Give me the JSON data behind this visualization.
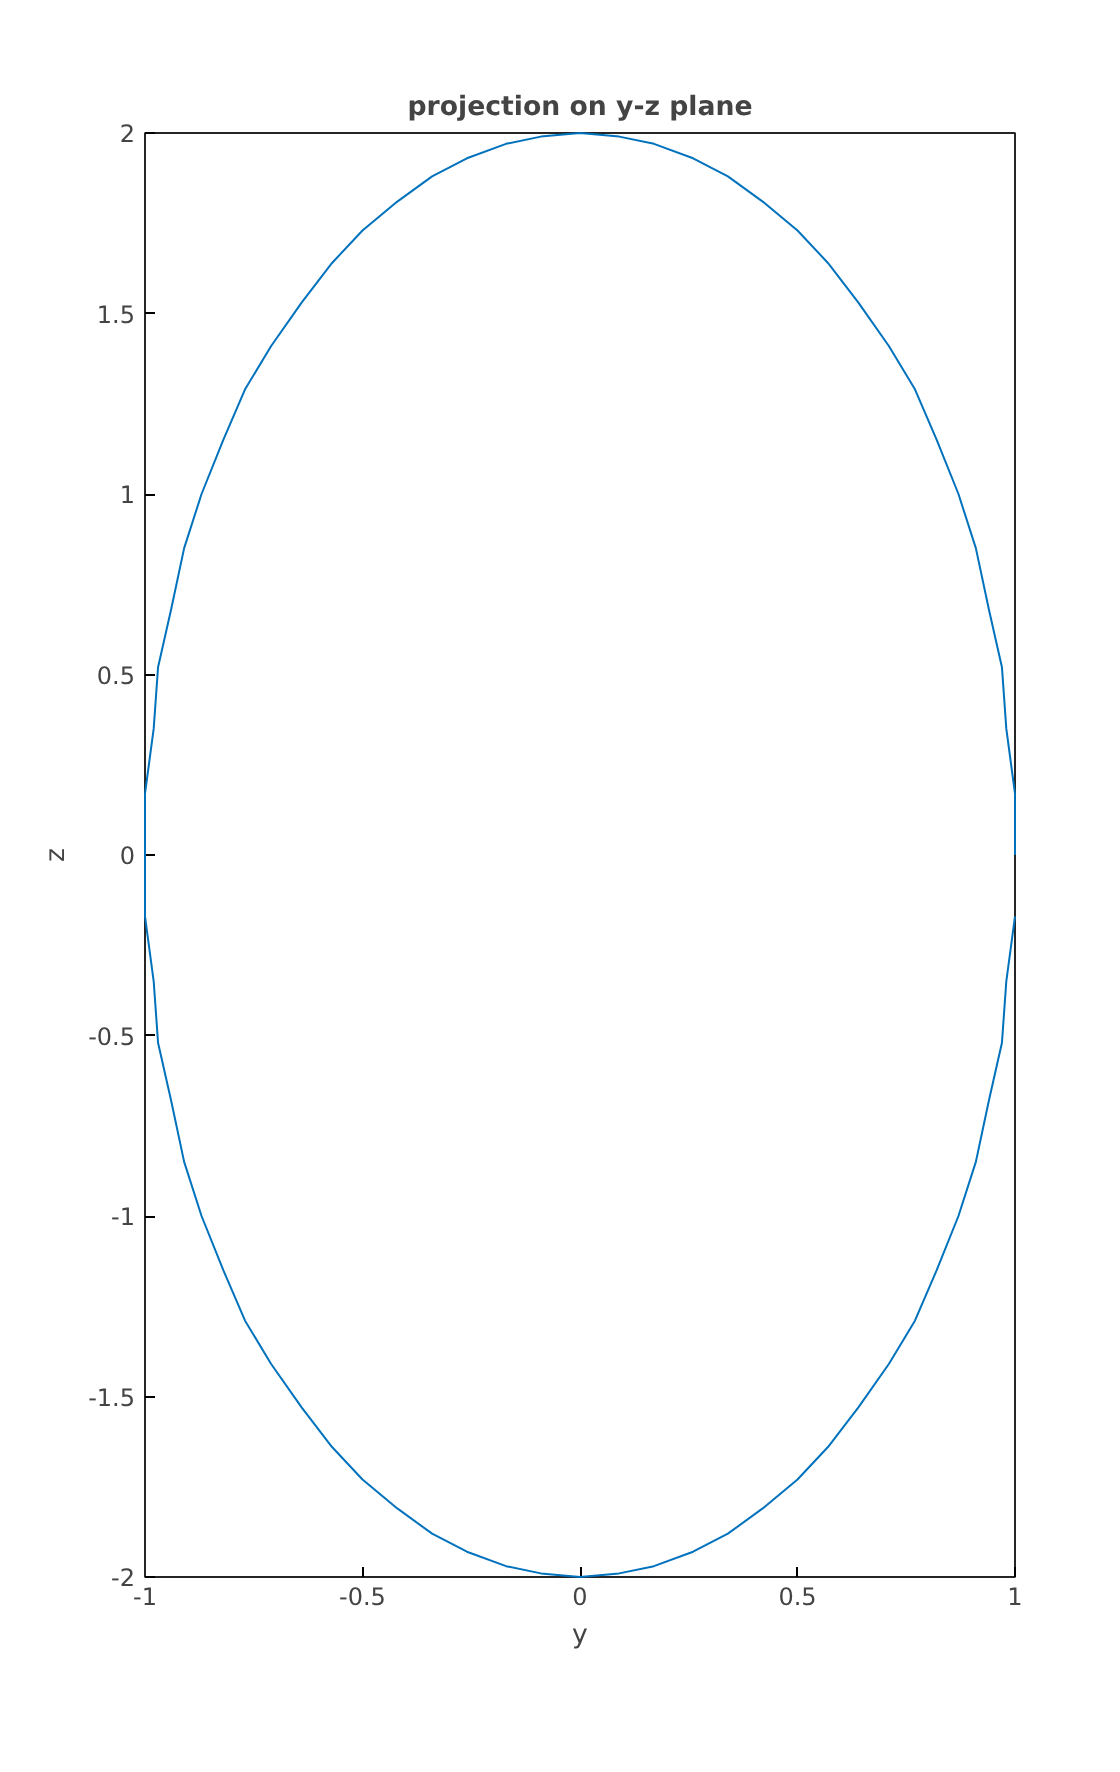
{
  "chart_data": {
    "type": "line",
    "title": "projection on y-z plane",
    "xlabel": "y",
    "ylabel": "z",
    "series": [
      {
        "color": "#0072bd",
        "x": [
          1,
          1,
          0.98,
          0.97,
          0.94,
          0.91,
          0.87,
          0.82,
          0.77,
          0.71,
          0.64,
          0.57,
          0.5,
          0.42,
          0.34,
          0.26,
          0.17,
          0.09,
          0,
          -0.09,
          -0.17,
          -0.26,
          -0.34,
          -0.42,
          -0.5,
          -0.57,
          -0.64,
          -0.71,
          -0.77,
          -0.82,
          -0.87,
          -0.91,
          -0.94,
          -0.97,
          -0.98,
          -1,
          -1,
          -1,
          -0.98,
          -0.97,
          -0.94,
          -0.91,
          -0.87,
          -0.82,
          -0.77,
          -0.71,
          -0.64,
          -0.57,
          -0.5,
          -0.42,
          -0.34,
          -0.26,
          -0.17,
          -0.09,
          0,
          0.09,
          0.17,
          0.26,
          0.34,
          0.42,
          0.5,
          0.57,
          0.64,
          0.71,
          0.77,
          0.82,
          0.87,
          0.91,
          0.94,
          0.97,
          0.98,
          1
        ],
        "values": [
          0,
          0.17,
          0.35,
          0.52,
          0.68,
          0.85,
          1.0,
          1.15,
          1.29,
          1.41,
          1.53,
          1.64,
          1.73,
          1.81,
          1.88,
          1.93,
          1.97,
          1.99,
          2,
          1.99,
          1.97,
          1.93,
          1.88,
          1.81,
          1.73,
          1.64,
          1.53,
          1.41,
          1.29,
          1.15,
          1.0,
          0.85,
          0.68,
          0.52,
          0.35,
          0.17,
          0,
          -0.17,
          -0.35,
          -0.52,
          -0.68,
          -0.85,
          -1.0,
          -1.15,
          -1.29,
          -1.41,
          -1.53,
          -1.64,
          -1.73,
          -1.81,
          -1.88,
          -1.93,
          -1.97,
          -1.99,
          -2,
          -1.99,
          -1.97,
          -1.93,
          -1.88,
          -1.81,
          -1.73,
          -1.64,
          -1.53,
          -1.41,
          -1.29,
          -1.15,
          -1.0,
          -0.85,
          -0.68,
          -0.52,
          -0.35,
          -0.17
        ]
      }
    ],
    "xlim": [
      -1,
      1
    ],
    "ylim": [
      -2,
      2
    ],
    "xticks": [
      -1,
      -0.5,
      0,
      0.5,
      1
    ],
    "yticks": [
      -2,
      -1.5,
      -1,
      -0.5,
      0,
      0.5,
      1,
      1.5,
      2
    ],
    "grid": false,
    "marker": "none",
    "line_style": "solid"
  }
}
